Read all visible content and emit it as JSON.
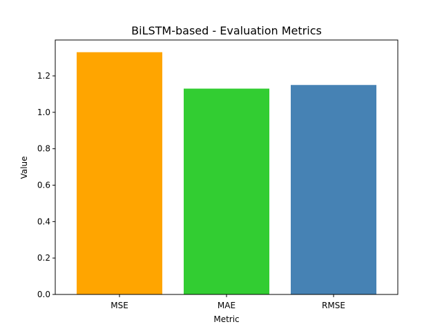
{
  "chart_data": {
    "type": "bar",
    "title": "BiLSTM-based - Evaluation Metrics",
    "xlabel": "Metric",
    "ylabel": "Value",
    "categories": [
      "MSE",
      "MAE",
      "RMSE"
    ],
    "values": [
      1.33,
      1.13,
      1.15
    ],
    "colors": [
      "#FFA500",
      "#32CD32",
      "#4682B4"
    ],
    "ylim": [
      0,
      1.397
    ],
    "yticks": [
      0.0,
      0.2,
      0.4,
      0.6,
      0.8,
      1.0,
      1.2
    ],
    "ytick_labels": [
      "0.0",
      "0.2",
      "0.4",
      "0.6",
      "0.8",
      "1.0",
      "1.2"
    ],
    "grid": false,
    "legend": false
  }
}
